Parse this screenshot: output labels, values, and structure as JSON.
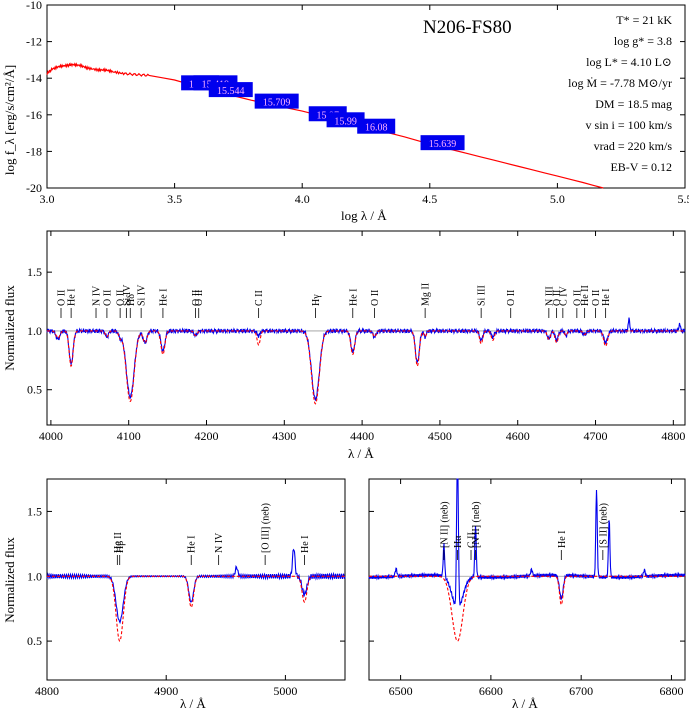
{
  "chart_data": [
    {
      "id": "sed",
      "type": "line",
      "title": "N206-FS80",
      "xlabel": "log λ / Å",
      "ylabel": "log f_λ [erg/s/cm²/Å]",
      "xlim": [
        3.0,
        5.5
      ],
      "ylim": [
        -20,
        -10
      ],
      "xticks": [
        3.0,
        3.5,
        4.0,
        4.5,
        5.0,
        5.5
      ],
      "yticks": [
        -20,
        -18,
        -16,
        -14,
        -12,
        -10
      ],
      "xtick_labels": [
        "3.0",
        "3.5",
        "4.0",
        "4.5",
        "5.0",
        "5.5"
      ],
      "ytick_labels": [
        "-20",
        "-18",
        "-16",
        "-14",
        "-12",
        "-10"
      ],
      "model": {
        "x": [
          3.0,
          3.02,
          3.05,
          3.08,
          3.1,
          3.13,
          3.16,
          3.2,
          3.23,
          3.26,
          3.3,
          3.35,
          3.4,
          3.5,
          3.6,
          3.7,
          3.8,
          3.9,
          4.0,
          4.1,
          4.2,
          4.3,
          4.4,
          4.5,
          4.6,
          4.7,
          4.8,
          4.9,
          5.0,
          5.1,
          5.18
        ],
        "y": [
          -13.75,
          -13.5,
          -13.35,
          -13.3,
          -13.25,
          -13.3,
          -13.45,
          -13.55,
          -13.55,
          -13.65,
          -13.75,
          -13.8,
          -13.85,
          -14.1,
          -14.5,
          -14.85,
          -15.2,
          -15.5,
          -15.8,
          -16.15,
          -16.5,
          -16.85,
          -17.2,
          -17.6,
          -17.95,
          -18.3,
          -18.65,
          -19.0,
          -19.35,
          -19.7,
          -20.0
        ]
      },
      "photometry": [
        {
          "x": 3.6,
          "y": -14.28,
          "label": "14.15"
        },
        {
          "x": 3.66,
          "y": -14.28,
          "label": "15.419"
        },
        {
          "x": 3.72,
          "y": -14.65,
          "label": "15.544"
        },
        {
          "x": 3.9,
          "y": -15.28,
          "label": "15.709"
        },
        {
          "x": 4.1,
          "y": -15.97,
          "label": "15.97"
        },
        {
          "x": 4.17,
          "y": -16.3,
          "label": "15.99"
        },
        {
          "x": 4.29,
          "y": -16.65,
          "label": "16.08"
        },
        {
          "x": 4.55,
          "y": -17.55,
          "label": "15.639"
        }
      ],
      "params": [
        "T* = 21 kK",
        "log g* = 3.8",
        "log L* = 4.10 L⊙",
        "log Ṁ = -7.78 M⊙/yr",
        "DM = 18.5 mag",
        "v sin i = 100 km/s",
        "vrad = 220 km/s",
        "EB-V = 0.12"
      ],
      "colors": {
        "model": "#ff0000",
        "badge": "#0000ee",
        "badge_text": "#ffb0ff"
      }
    },
    {
      "id": "blue",
      "type": "line",
      "xlabel": "λ / Å",
      "ylabel": "Normalized flux",
      "xlim": [
        3995,
        4815
      ],
      "ylim": [
        0.2,
        1.85
      ],
      "xticks": [
        4000,
        4100,
        4200,
        4300,
        4400,
        4500,
        4600,
        4700,
        4800
      ],
      "yticks": [
        0.5,
        1.0,
        1.5
      ],
      "xtick_labels": [
        "4000",
        "4100",
        "4200",
        "4300",
        "4400",
        "4500",
        "4600",
        "4700",
        "4800"
      ],
      "ytick_labels": [
        "0.5",
        "1.0",
        "1.5"
      ],
      "series": [
        {
          "role": "observed",
          "color": "#0000ee"
        },
        {
          "role": "model",
          "color": "#ff0000",
          "dash": "3,2"
        }
      ],
      "lines": [
        {
          "w": 4009,
          "d": 0.07,
          "md": 0.06,
          "s": 2.5
        },
        {
          "w": 4026,
          "d": 0.28,
          "md": 0.3,
          "s": 2.5
        },
        {
          "w": 4072,
          "d": 0.05,
          "md": 0.05,
          "s": 2
        },
        {
          "w": 4089,
          "d": 0.05,
          "md": 0.05,
          "s": 2
        },
        {
          "w": 4102,
          "d": 0.56,
          "md": 0.6,
          "s": 5
        },
        {
          "w": 4121,
          "d": 0.1,
          "md": 0.1,
          "s": 2.5
        },
        {
          "w": 4144,
          "d": 0.17,
          "md": 0.2,
          "s": 2.5
        },
        {
          "w": 4186,
          "d": 0.04,
          "md": 0.04,
          "s": 2
        },
        {
          "w": 4267,
          "d": 0.04,
          "md": 0.12,
          "s": 2
        },
        {
          "w": 4340,
          "d": 0.58,
          "md": 0.62,
          "s": 5
        },
        {
          "w": 4388,
          "d": 0.18,
          "md": 0.2,
          "s": 2.5
        },
        {
          "w": 4416,
          "d": 0.05,
          "md": 0.05,
          "s": 2
        },
        {
          "w": 4471,
          "d": 0.27,
          "md": 0.3,
          "s": 2.5
        },
        {
          "w": 4481,
          "d": 0.05,
          "md": 0.05,
          "s": 1.5
        },
        {
          "w": 4553,
          "d": 0.08,
          "md": 0.11,
          "s": 2
        },
        {
          "w": 4568,
          "d": 0.05,
          "md": 0.08,
          "s": 2
        },
        {
          "w": 4640,
          "d": 0.07,
          "md": 0.07,
          "s": 2
        },
        {
          "w": 4650,
          "d": 0.08,
          "md": 0.1,
          "s": 2
        },
        {
          "w": 4662,
          "d": 0.04,
          "md": 0.04,
          "s": 1.5
        },
        {
          "w": 4686,
          "d": 0.03,
          "md": 0.03,
          "s": 2
        },
        {
          "w": 4713,
          "d": 0.1,
          "md": 0.13,
          "s": 2.5
        }
      ],
      "emission": [
        {
          "w": 4743,
          "h": 0.1,
          "s": 1
        },
        {
          "w": 4808,
          "h": 0.06,
          "s": 1
        }
      ],
      "labels": [
        {
          "w": 4013,
          "text": "O II"
        },
        {
          "w": 4026,
          "text": "He I"
        },
        {
          "w": 4058,
          "text": "N IV"
        },
        {
          "w": 4072,
          "text": "O II"
        },
        {
          "w": 4089,
          "text": "O II"
        },
        {
          "w": 4097,
          "text": "Si IV"
        },
        {
          "w": 4102,
          "text": "Hδ"
        },
        {
          "w": 4116,
          "text": "Si IV"
        },
        {
          "w": 4144,
          "text": "He I"
        },
        {
          "w": 4186,
          "text": "O II"
        },
        {
          "w": 4190,
          "text": "O II"
        },
        {
          "w": 4267,
          "text": "C II"
        },
        {
          "w": 4340,
          "text": "Hγ"
        },
        {
          "w": 4388,
          "text": "He I"
        },
        {
          "w": 4416,
          "text": "O II"
        },
        {
          "w": 4481,
          "text": "Mg II"
        },
        {
          "w": 4553,
          "text": "Si III"
        },
        {
          "w": 4591,
          "text": "O II"
        },
        {
          "w": 4640,
          "text": "N III"
        },
        {
          "w": 4650,
          "text": "O II"
        },
        {
          "w": 4658,
          "text": "C IV"
        },
        {
          "w": 4676,
          "text": "O II"
        },
        {
          "w": 4686,
          "text": "He II"
        },
        {
          "w": 4700,
          "text": "O II"
        },
        {
          "w": 4713,
          "text": "He I"
        }
      ]
    },
    {
      "id": "hbeta",
      "type": "line",
      "xlabel": "λ / Å",
      "ylabel": "Normalized flux",
      "xlim": [
        4800,
        5050
      ],
      "ylim": [
        0.2,
        1.75
      ],
      "xticks": [
        4800,
        4900,
        5000
      ],
      "yticks": [
        0.5,
        1.0,
        1.5
      ],
      "xtick_labels": [
        "4800",
        "4900",
        "5000"
      ],
      "ytick_labels": [
        "0.5",
        "1.0",
        "1.5"
      ],
      "lines": [
        {
          "w": 4861,
          "d": 0.35,
          "md": 0.5,
          "s": 3
        },
        {
          "w": 4921,
          "d": 0.2,
          "md": 0.24,
          "s": 2
        },
        {
          "w": 5016,
          "d": 0.14,
          "md": 0.2,
          "s": 2
        }
      ],
      "emission": [
        {
          "w": 4959,
          "h": 0.07,
          "s": 1
        },
        {
          "w": 5007,
          "h": 0.22,
          "s": 1
        }
      ],
      "labels": [
        {
          "w": 4859,
          "text": "He II"
        },
        {
          "w": 4861,
          "text": "Hβ"
        },
        {
          "w": 4921,
          "text": "He I"
        },
        {
          "w": 4944,
          "text": "N IV"
        },
        {
          "w": 4983,
          "text": "[O III] (neb)"
        },
        {
          "w": 5016,
          "text": "He I"
        }
      ]
    },
    {
      "id": "halpha",
      "type": "line",
      "xlabel": "λ / Å",
      "ylim": [
        0.2,
        1.75
      ],
      "xlim": [
        6465,
        6815
      ],
      "xticks": [
        6500,
        6600,
        6700,
        6800
      ],
      "yticks": [
        0.5,
        1.0,
        1.5
      ],
      "xtick_labels": [
        "6500",
        "6600",
        "6700",
        "6800"
      ],
      "ytick_labels": [
        "",
        "",
        ""
      ],
      "lines": [
        {
          "w": 6563,
          "d": 0.25,
          "md": 0.5,
          "s": 6
        },
        {
          "w": 6678,
          "d": 0.18,
          "md": 0.22,
          "s": 2
        }
      ],
      "emission": [
        {
          "w": 6548,
          "h": 0.25,
          "s": 0.8
        },
        {
          "w": 6563,
          "h": 1.35,
          "s": 0.9
        },
        {
          "w": 6583,
          "h": 0.4,
          "s": 0.8
        },
        {
          "w": 6717,
          "h": 0.68,
          "s": 0.8
        },
        {
          "w": 6731,
          "h": 0.45,
          "s": 0.8
        },
        {
          "w": 6495,
          "h": 0.06,
          "s": 1
        },
        {
          "w": 6645,
          "h": 0.05,
          "s": 1
        },
        {
          "w": 6770,
          "h": 0.05,
          "s": 1
        }
      ],
      "labels": [
        {
          "w": 6548,
          "text": "[N II] (neb)"
        },
        {
          "w": 6563,
          "text": "Hα"
        },
        {
          "w": 6578,
          "text": "C II"
        },
        {
          "w": 6583,
          "text": "[N II] (neb)"
        },
        {
          "w": 6678,
          "text": "He I"
        },
        {
          "w": 6724,
          "text": "[S II] (neb)"
        }
      ]
    }
  ]
}
